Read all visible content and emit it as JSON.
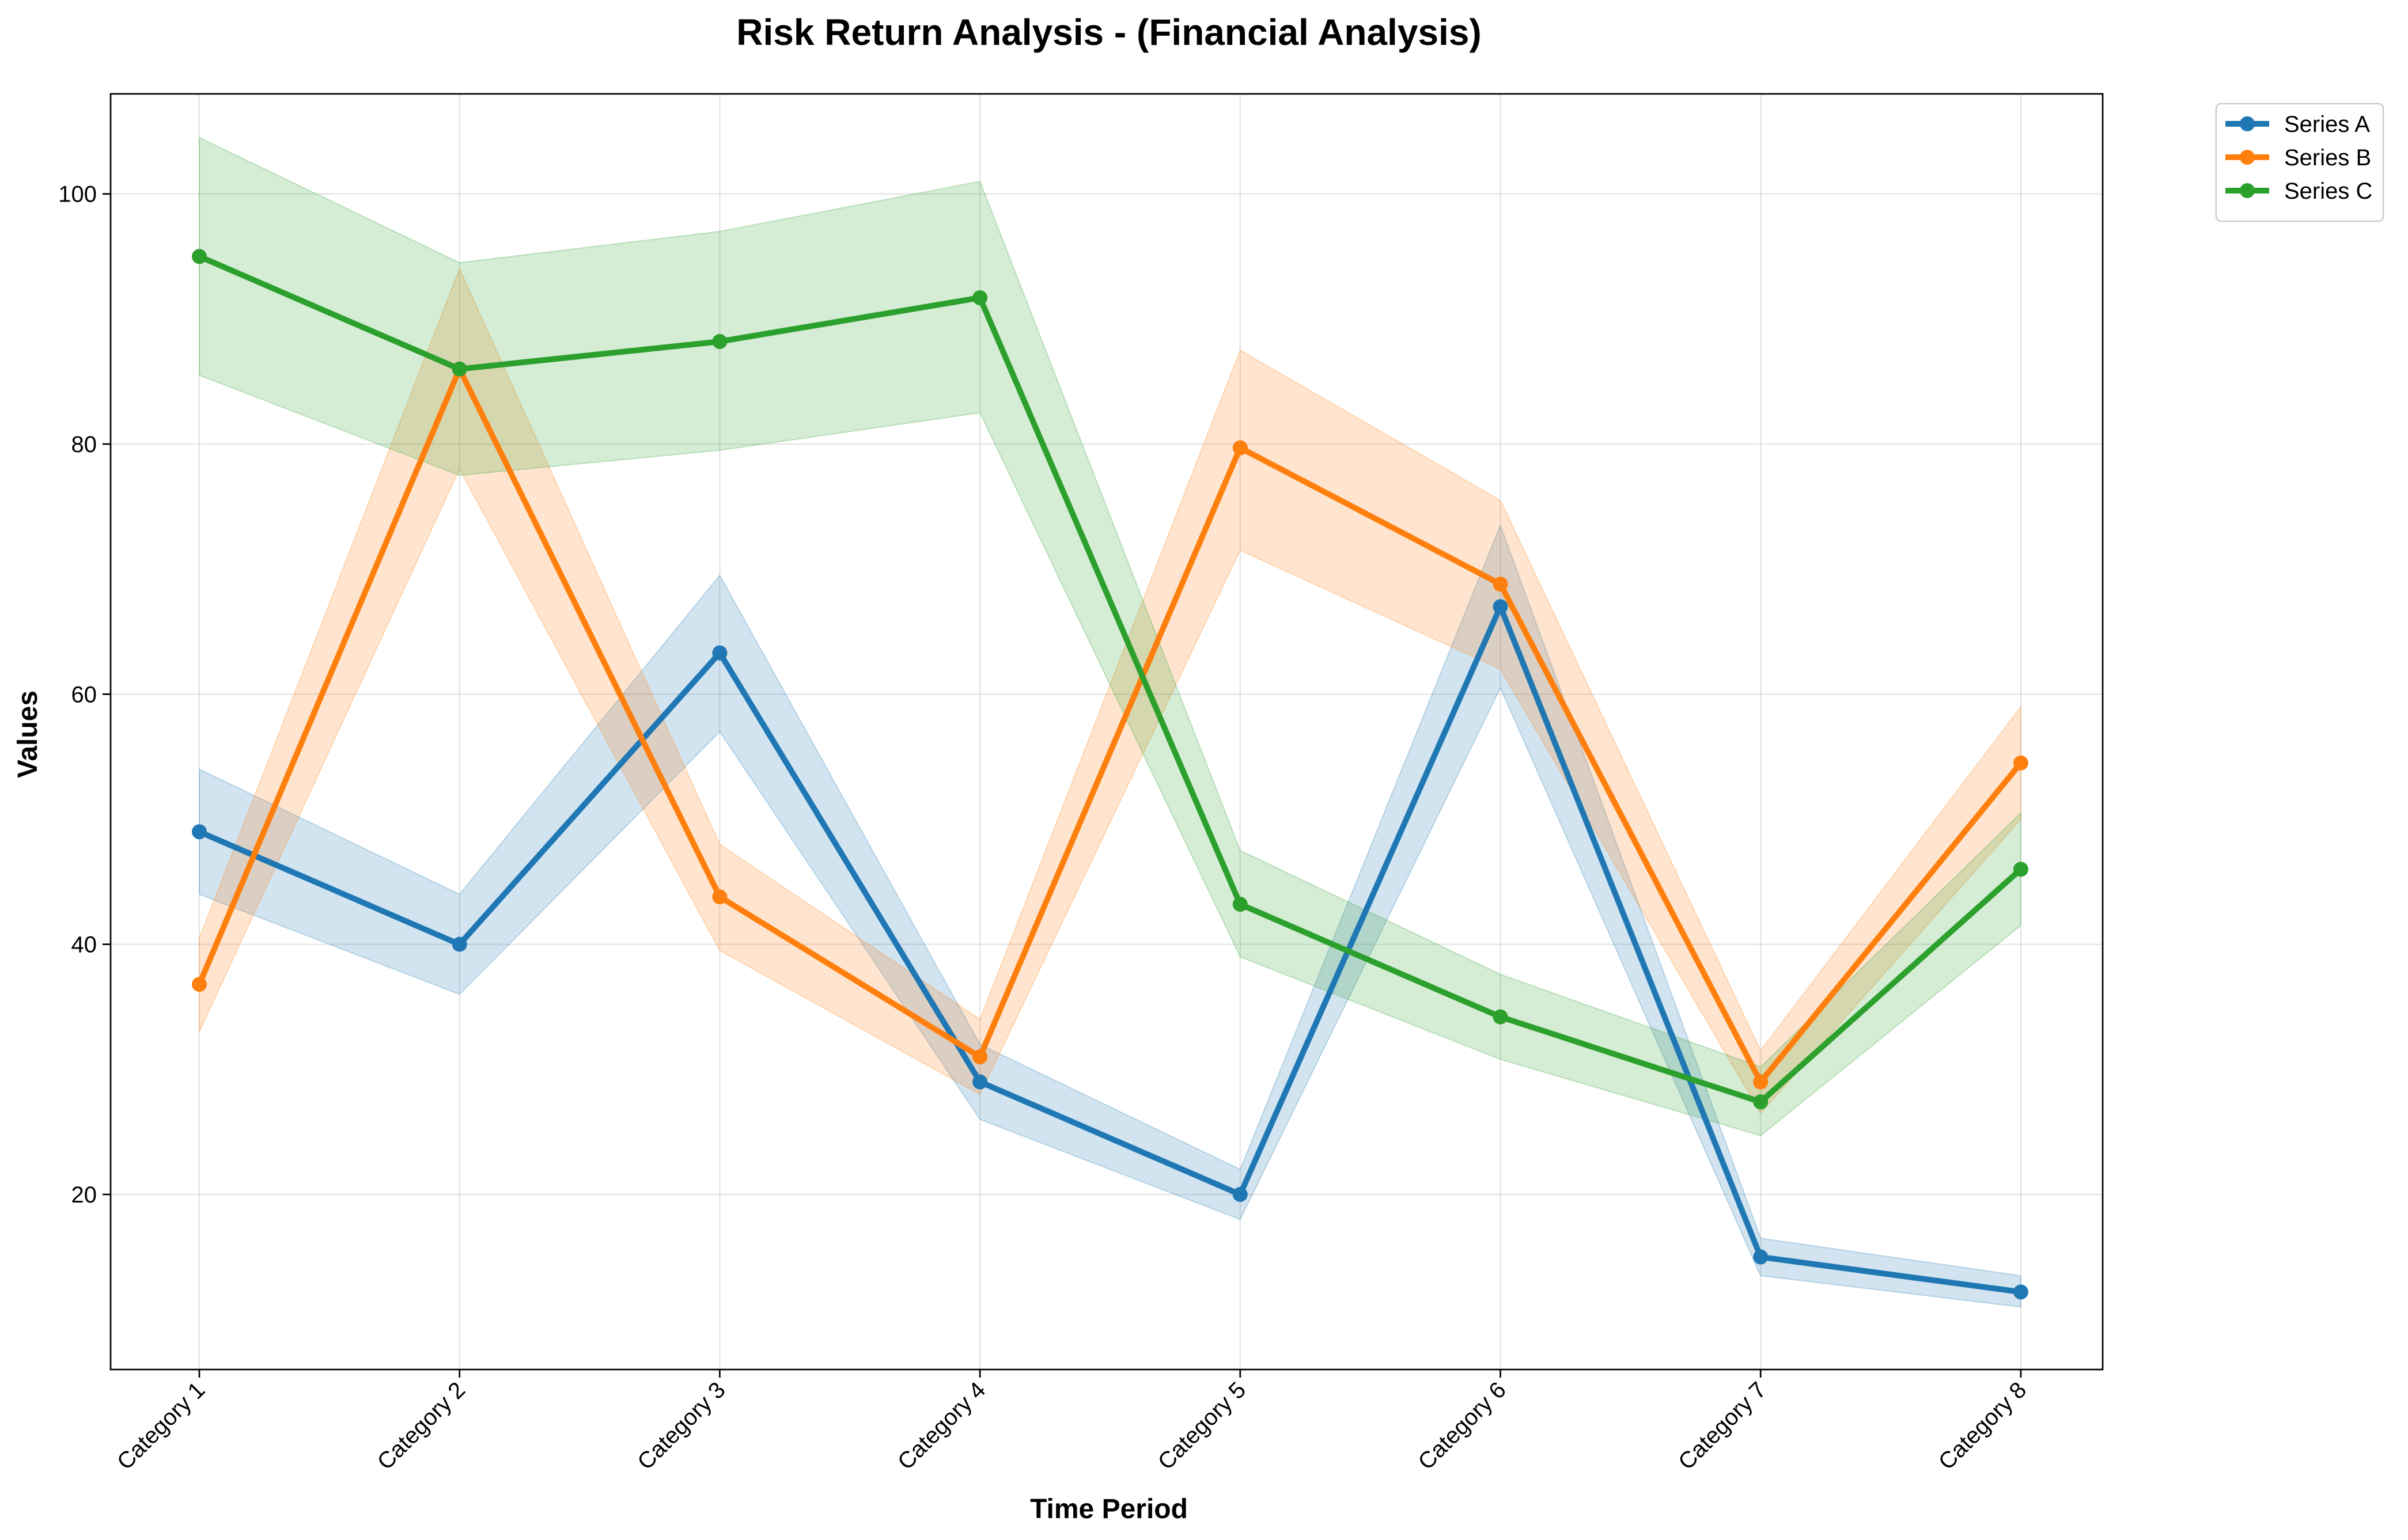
{
  "chart_data": {
    "type": "line",
    "title": "Risk Return Analysis - (Financial Analysis)",
    "xlabel": "Time Period",
    "ylabel": "Values",
    "categories": [
      "Category 1",
      "Category 2",
      "Category 3",
      "Category 4",
      "Category 5",
      "Category 6",
      "Category 7",
      "Category 8"
    ],
    "ylim": [
      6,
      108
    ],
    "yticks": [
      20,
      40,
      60,
      80,
      100
    ],
    "grid": true,
    "legend_position": "upper right, outside plot",
    "series": [
      {
        "name": "Series A",
        "color": "#1f77b4",
        "values": [
          49,
          40,
          63.3,
          29,
          20,
          67,
          15,
          12.2
        ],
        "lower": [
          44,
          36,
          57,
          26,
          18,
          60.5,
          13.5,
          11
        ],
        "upper": [
          54,
          44,
          69.5,
          32,
          22,
          73.5,
          16.5,
          13.5
        ]
      },
      {
        "name": "Series B",
        "color": "#ff7f0e",
        "values": [
          36.8,
          86,
          43.8,
          31,
          79.7,
          68.8,
          29,
          54.5
        ],
        "lower": [
          33,
          78,
          39.5,
          28,
          71.5,
          62,
          26.5,
          50
        ],
        "upper": [
          40.5,
          94,
          48,
          34,
          87.5,
          75.5,
          31.5,
          59
        ]
      },
      {
        "name": "Series C",
        "color": "#2ca02c",
        "values": [
          95,
          86,
          88.2,
          91.7,
          43.2,
          34.2,
          27.4,
          46
        ],
        "lower": [
          85.5,
          77.5,
          79.5,
          82.5,
          39,
          30.8,
          24.7,
          41.5
        ],
        "upper": [
          104.5,
          94.5,
          97,
          101,
          47.5,
          37.6,
          30.2,
          50.5
        ]
      }
    ]
  }
}
